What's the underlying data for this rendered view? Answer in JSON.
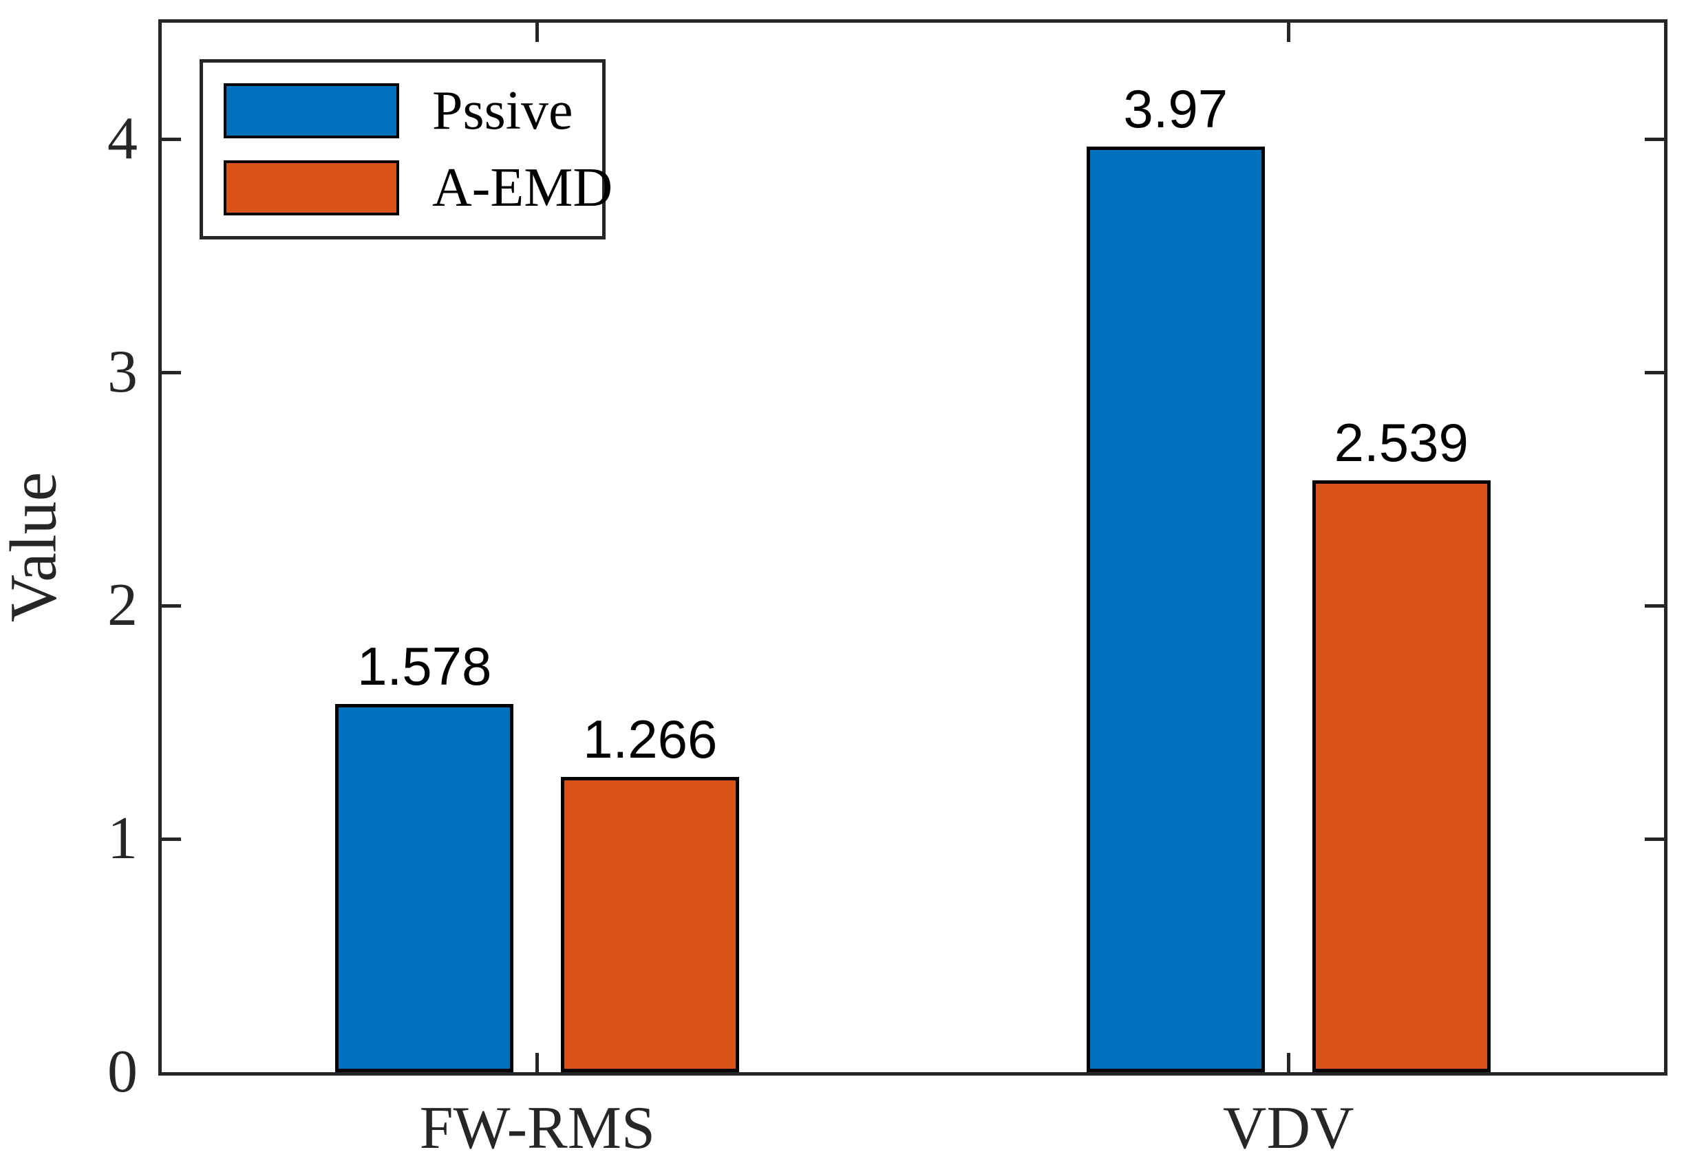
{
  "figure": {
    "background": "#ffffff"
  },
  "chart_data": {
    "type": "bar",
    "categories": [
      "FW-RMS",
      "VDV"
    ],
    "series": [
      {
        "name": "Pssive",
        "color": "#0072BD",
        "values": [
          1.578,
          3.97
        ],
        "labels": [
          "1.578",
          "3.97"
        ]
      },
      {
        "name": "A-EMD",
        "color": "#D95319",
        "values": [
          1.266,
          2.539
        ],
        "labels": [
          "1.266",
          "2.539"
        ]
      }
    ],
    "title": "",
    "xlabel": "",
    "ylabel": "Value",
    "ylim": [
      0,
      4.5
    ],
    "yticks": [
      0,
      1,
      2,
      3,
      4
    ],
    "grid": false,
    "legend_position": "top-left",
    "axis_color": "#262626",
    "bar_edge_color": "#000000",
    "value_label_color": "#000000"
  }
}
